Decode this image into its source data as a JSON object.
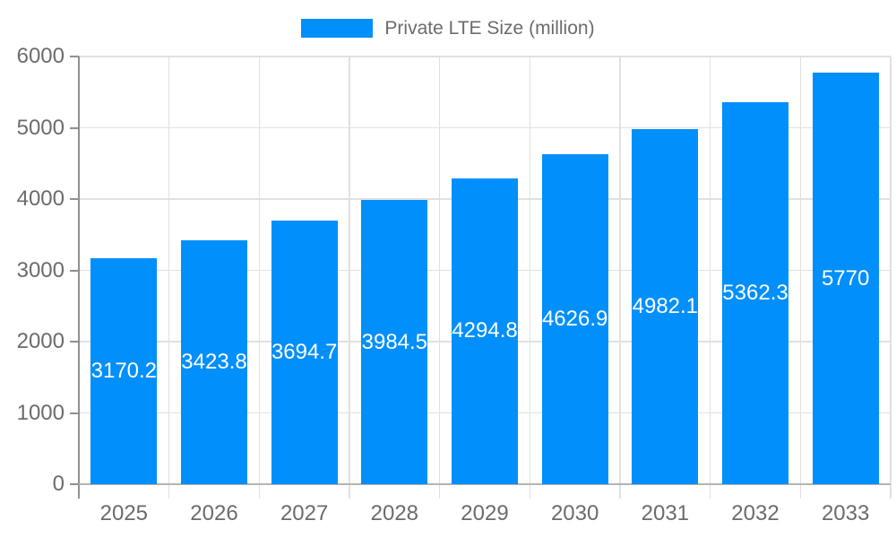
{
  "legend": {
    "label": "Private LTE Size (million)"
  },
  "colors": {
    "bar": "#008FFB",
    "grid": "#e0e0e0",
    "axis_y": "#8f8f8f",
    "axis_x": "#b3b3b3",
    "tick": "#8f8f8f",
    "label_text": "#6b6b6b",
    "value_text": "#ffffff"
  },
  "chart_data": {
    "type": "bar",
    "title": "",
    "legend_label": "Private LTE Size (million)",
    "legend_position": "top",
    "categories": [
      "2025",
      "2026",
      "2027",
      "2028",
      "2029",
      "2030",
      "2031",
      "2032",
      "2033"
    ],
    "values": [
      3170.2,
      3423.8,
      3694.7,
      3984.5,
      4294.8,
      4626.9,
      4982.1,
      5362.3,
      5770
    ],
    "xlabel": "",
    "ylabel": "",
    "ylim": [
      0,
      6000
    ],
    "ytick_step": 1000,
    "yticks": [
      0,
      1000,
      2000,
      3000,
      4000,
      5000,
      6000
    ],
    "grid": true,
    "value_labels": "centered-in-bar"
  }
}
